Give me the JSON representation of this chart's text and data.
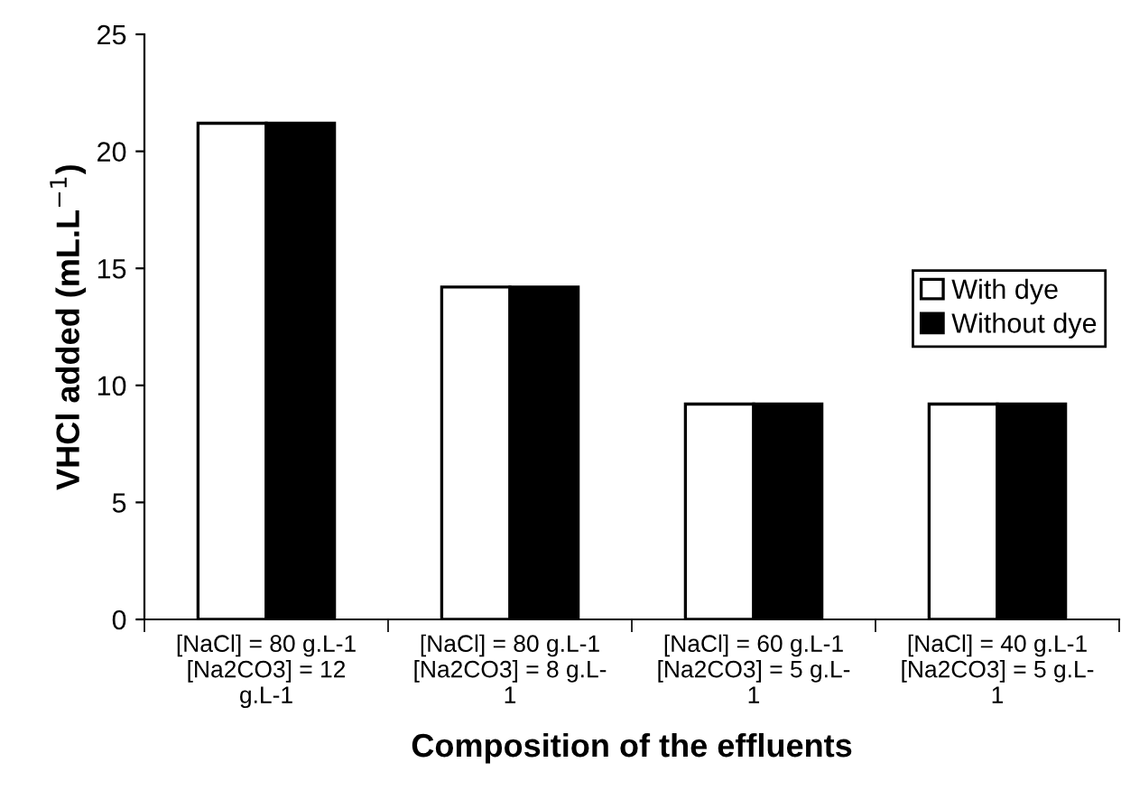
{
  "chart_data": {
    "type": "bar",
    "xlabel": "Composition of the effluents",
    "ylabel": "VHCl added (mL.L$^{−1}$)",
    "categories": [
      "[NaCl] = 80 g.L-1\n[Na2CO3] = 12\ng.L-1",
      "[NaCl] = 80 g.L-1\n[Na2CO3] = 8 g.L-\n1",
      "[NaCl] = 60 g.L-1\n[Na2CO3] = 5 g.L-\n1",
      "[NaCl] = 40 g.L-1\n[Na2CO3] = 5 g.L-\n1"
    ],
    "series": [
      {
        "name": "With dye",
        "color": "#ffffff",
        "values": [
          21.2,
          14.2,
          9.2,
          9.2
        ]
      },
      {
        "name": "Without dye",
        "color": "#000000",
        "values": [
          21.2,
          14.2,
          9.2,
          9.2
        ]
      }
    ],
    "ylim": [
      0,
      25
    ],
    "yticks": [
      0,
      5,
      10,
      15,
      20,
      25
    ],
    "grid": false,
    "legend": "right"
  }
}
